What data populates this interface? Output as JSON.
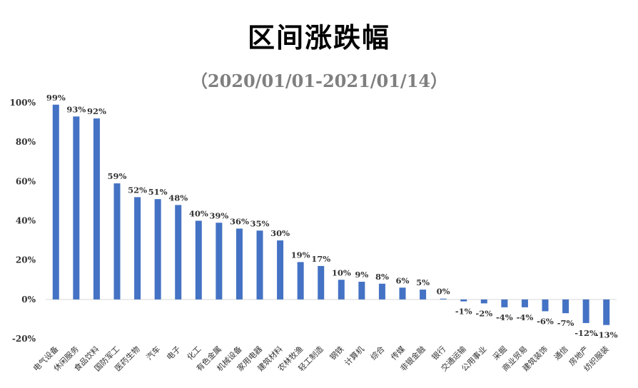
{
  "title": "区间涨跌幅",
  "subtitle": "（2020/01/01-2021/01/14）",
  "colors": {
    "bar": "#4472C4",
    "axis": "#d9d9d9",
    "text": "#333333",
    "subtitle": "#7f7f7f"
  },
  "chart_data": {
    "type": "bar",
    "title": "区间涨跌幅",
    "subtitle": "（2020/01/01-2021/01/14）",
    "xlabel": "",
    "ylabel": "",
    "ylim": [
      -20,
      100
    ],
    "yticks": [
      -20,
      0,
      20,
      40,
      60,
      80,
      100
    ],
    "ytick_labels": [
      "-20%",
      "0%",
      "20%",
      "40%",
      "60%",
      "80%",
      "100%"
    ],
    "grid": false,
    "legend": "none",
    "categories": [
      "电气设备",
      "休闲服务",
      "食品饮料",
      "国防军工",
      "医药生物",
      "汽车",
      "电子",
      "化工",
      "有色金属",
      "机械设备",
      "家用电器",
      "建筑材料",
      "农林牧渔",
      "轻工制造",
      "钢铁",
      "计算机",
      "综合",
      "传媒",
      "非银金融",
      "银行",
      "交通运输",
      "公用事业",
      "采掘",
      "商业贸易",
      "建筑装饰",
      "通信",
      "房地产",
      "纺织服装"
    ],
    "values": [
      99,
      93,
      92,
      59,
      52,
      51,
      48,
      40,
      39,
      36,
      35,
      30,
      19,
      17,
      10,
      9,
      8,
      6,
      5,
      0.4,
      -1,
      -2,
      -4,
      -4,
      -6,
      -7,
      -12,
      -13
    ],
    "value_labels": [
      "99%",
      "93%",
      "92%",
      "59%",
      "52%",
      "51%",
      "48%",
      "40%",
      "39%",
      "36%",
      "35%",
      "30%",
      "19%",
      "17%",
      "10%",
      "9%",
      "8%",
      "6%",
      "5%",
      "0%",
      "-1%",
      "-2%",
      "-4%",
      "-4%",
      "-6%",
      "-7%",
      "-12%",
      "-13%"
    ]
  }
}
